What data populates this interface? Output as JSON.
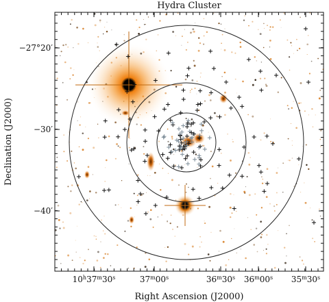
{
  "title": "Hydra Cluster",
  "xlabel": "Right Ascension (J2000)",
  "ylabel": "Declination (J2000)",
  "x_ticks": [
    {
      "ra": "10h37m30s",
      "parts": [
        "10",
        "h",
        "37",
        "m",
        "30",
        "s"
      ]
    },
    {
      "ra": "37m00s",
      "parts": [
        "37",
        "m",
        "00",
        "s"
      ]
    },
    {
      "ra": "36m30s",
      "parts": [
        "36",
        "m",
        "30",
        "s"
      ]
    },
    {
      "ra": "36m00s",
      "parts": [
        "36",
        "m",
        "00",
        "s"
      ]
    },
    {
      "ra": "35m30s",
      "parts": [
        "35",
        "m",
        "30",
        "s"
      ]
    }
  ],
  "y_ticks": [
    {
      "label": "−27°20′",
      "dec_arcmin": -20
    },
    {
      "label": "−30′",
      "dec_arcmin": -30
    },
    {
      "label": "−40′",
      "dec_arcmin": -40
    }
  ],
  "colors": {
    "background": "#ffffff",
    "star_glow": "#e07a10",
    "star_core": "#000000",
    "markers_outer": "#111111",
    "markers_inner": "#7a8a96"
  },
  "circle_count": 3
}
